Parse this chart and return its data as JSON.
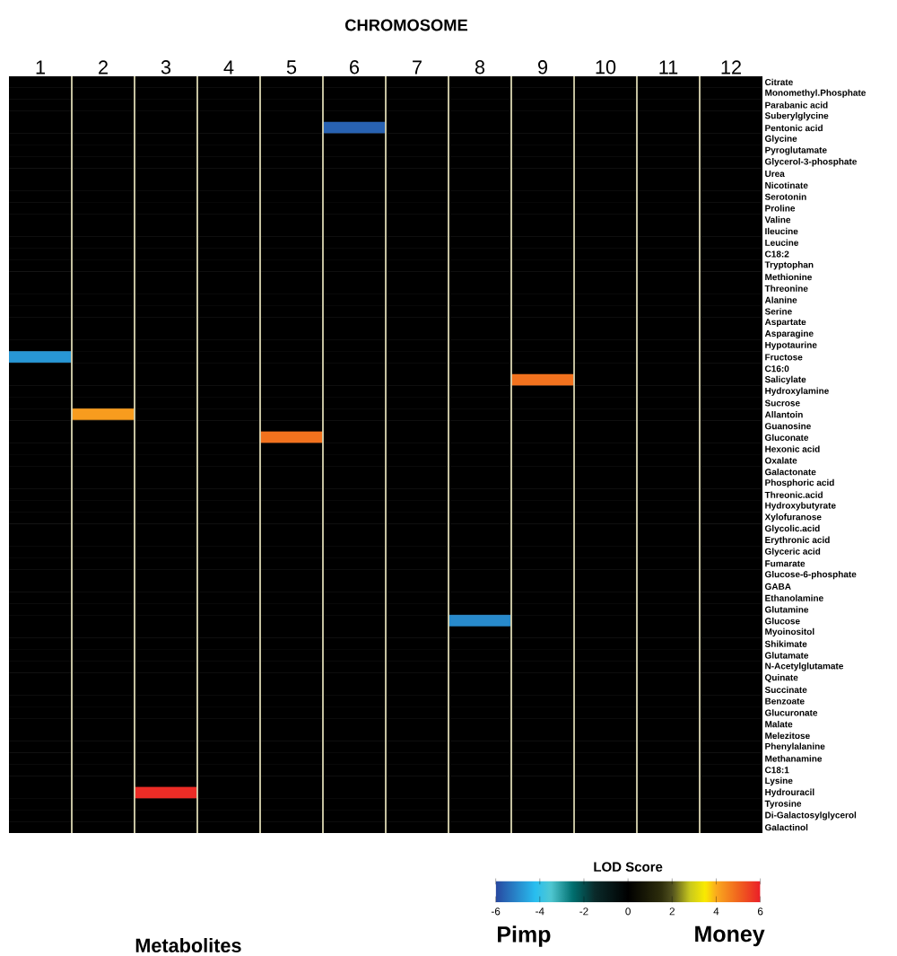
{
  "chart_data": {
    "type": "heatmap",
    "title": "CHROMOSOME",
    "clabel": "LOD Score",
    "annotations": [
      "Pimp",
      "Money",
      "Metabolites"
    ],
    "categories": [
      "1",
      "2",
      "3",
      "4",
      "5",
      "6",
      "7",
      "8",
      "9",
      "10",
      "11",
      "12"
    ],
    "y_categories": [
      "Citrate",
      "Monomethyl.Phosphate",
      "Parabanic acid",
      "Suberylglycine",
      "Pentonic acid",
      "Glycine",
      "Pyroglutamate",
      "Glycerol-3-phosphate",
      "Urea",
      "Nicotinate",
      "Serotonin",
      "Proline",
      "Valine",
      "Ileucine",
      "Leucine",
      "C18:2",
      "Tryptophan",
      "Methionine",
      "Threonine",
      "Alanine",
      "Serine",
      "Aspartate",
      "Asparagine",
      "Hypotaurine",
      "Fructose",
      "C16:0",
      "Salicylate",
      "Hydroxylamine",
      "Sucrose",
      "Allantoin",
      "Guanosine",
      "Gluconate",
      "Hexonic acid",
      "Oxalate",
      "Galactonate",
      "Phosphoric acid",
      "Threonic.acid",
      "Hydroxybutyrate",
      "Xylofuranose",
      "Glycolic.acid",
      "Erythronic acid",
      "Glyceric acid",
      "Fumarate",
      "Glucose-6-phosphate",
      "GABA",
      "Ethanolamine",
      "Glutamine",
      "Glucose",
      "Myoinositol",
      "Shikimate",
      "Glutamate",
      "N-Acetylglutamate",
      "Quinate",
      "Succinate",
      "Benzoate",
      "Glucuronate",
      "Malate",
      "Melezitose",
      "Phenylalanine",
      "Methanamine",
      "C18:1",
      "Lysine",
      "Hydrouracil",
      "Tyrosine",
      "Di-Galactosylglycerol",
      "Galactinol"
    ],
    "clim": [
      -6,
      6
    ],
    "cticks": [
      -6,
      -4,
      -2,
      0,
      2,
      4,
      6
    ],
    "cells": [
      [
        0,
        0,
        0,
        0,
        0,
        0,
        0,
        0,
        0,
        0,
        0,
        0
      ],
      [
        0,
        0,
        0,
        0,
        0,
        0,
        0,
        0,
        0,
        0,
        0,
        0
      ],
      [
        0,
        0,
        0,
        0,
        0,
        0,
        0,
        0,
        0,
        0,
        0,
        0
      ],
      [
        0,
        0,
        0,
        0,
        0,
        0,
        0,
        0,
        0,
        0,
        0,
        0
      ],
      [
        0,
        0,
        0,
        0,
        0,
        -5.6,
        0,
        0,
        0,
        0,
        0,
        0
      ],
      [
        0,
        0,
        0,
        0,
        0,
        0,
        0,
        0,
        0,
        0,
        0,
        0
      ],
      [
        0,
        0,
        0,
        0,
        0,
        0,
        0,
        0,
        0,
        0,
        0,
        0
      ],
      [
        0,
        0,
        0,
        0,
        0,
        0,
        0,
        0,
        0,
        0,
        0,
        0
      ],
      [
        0,
        0,
        0,
        0,
        0,
        0,
        0,
        0,
        0,
        0,
        0,
        0
      ],
      [
        0,
        0,
        0,
        0,
        0,
        0,
        0,
        0,
        0,
        0,
        0,
        0
      ],
      [
        0,
        0,
        0,
        0,
        0,
        0,
        0,
        0,
        0,
        0,
        0,
        0
      ],
      [
        0,
        0,
        0,
        0,
        0,
        0,
        0,
        0,
        0,
        0,
        0,
        0
      ],
      [
        0,
        0,
        0,
        0,
        0,
        0,
        0,
        0,
        0,
        0,
        0,
        0
      ],
      [
        0,
        0,
        0,
        0,
        0,
        0,
        0,
        0,
        0,
        0,
        0,
        0
      ],
      [
        0,
        0,
        0,
        0,
        0,
        0,
        0,
        0,
        0,
        0,
        0,
        0
      ],
      [
        0,
        0,
        0,
        0,
        0,
        0,
        0,
        0,
        0,
        0,
        0,
        0
      ],
      [
        0,
        0,
        0,
        0,
        0,
        0,
        0,
        0,
        0,
        0,
        0,
        0
      ],
      [
        0,
        0,
        0,
        0,
        0,
        0,
        0,
        0,
        0,
        0,
        0,
        0
      ],
      [
        0,
        0,
        0,
        0,
        0,
        0,
        0,
        0,
        0,
        0,
        0,
        0
      ],
      [
        0,
        0,
        0,
        0,
        0,
        0,
        0,
        0,
        0,
        0,
        0,
        0
      ],
      [
        0,
        0,
        0,
        0,
        0,
        0,
        0,
        0,
        0,
        0,
        0,
        0
      ],
      [
        0,
        0,
        0,
        0,
        0,
        0,
        0,
        0,
        0,
        0,
        0,
        0
      ],
      [
        0,
        0,
        0,
        0,
        0,
        0,
        0,
        0,
        0,
        0,
        0,
        0
      ],
      [
        0,
        0,
        0,
        0,
        0,
        0,
        0,
        0,
        0,
        0,
        0,
        0
      ],
      [
        -4.8,
        0,
        0,
        0,
        0,
        0,
        0,
        0,
        0,
        0,
        0,
        0
      ],
      [
        0,
        0,
        0,
        0,
        0,
        0,
        0,
        0,
        0,
        0,
        0,
        0
      ],
      [
        0,
        0,
        0,
        0,
        0,
        0,
        0,
        0,
        4.8,
        0,
        0,
        0
      ],
      [
        0,
        0,
        0,
        0,
        0,
        0,
        0,
        0,
        0,
        0,
        0,
        0
      ],
      [
        0,
        0,
        0,
        0,
        0,
        0,
        0,
        0,
        0,
        0,
        0,
        0
      ],
      [
        0,
        4.2,
        0,
        0,
        0,
        0,
        0,
        0,
        0,
        0,
        0,
        0
      ],
      [
        0,
        0,
        0,
        0,
        0,
        0,
        0,
        0,
        0,
        0,
        0,
        0
      ],
      [
        0,
        0,
        0,
        0,
        4.8,
        0,
        0,
        0,
        0,
        0,
        0,
        0
      ],
      [
        0,
        0,
        0,
        0,
        0,
        0,
        0,
        0,
        0,
        0,
        0,
        0
      ],
      [
        0,
        0,
        0,
        0,
        0,
        0,
        0,
        0,
        0,
        0,
        0,
        0
      ],
      [
        0,
        0,
        0,
        0,
        0,
        0,
        0,
        0,
        0,
        0,
        0,
        0
      ],
      [
        0,
        0,
        0,
        0,
        0,
        0,
        0,
        0,
        0,
        0,
        0,
        0
      ],
      [
        0,
        0,
        0,
        0,
        0,
        0,
        0,
        0,
        0,
        0,
        0,
        0
      ],
      [
        0,
        0,
        0,
        0,
        0,
        0,
        0,
        0,
        0,
        0,
        0,
        0
      ],
      [
        0,
        0,
        0,
        0,
        0,
        0,
        0,
        0,
        0,
        0,
        0,
        0
      ],
      [
        0,
        0,
        0,
        0,
        0,
        0,
        0,
        0,
        0,
        0,
        0,
        0
      ],
      [
        0,
        0,
        0,
        0,
        0,
        0,
        0,
        0,
        0,
        0,
        0,
        0
      ],
      [
        0,
        0,
        0,
        0,
        0,
        0,
        0,
        0,
        0,
        0,
        0,
        0
      ],
      [
        0,
        0,
        0,
        0,
        0,
        0,
        0,
        0,
        0,
        0,
        0,
        0
      ],
      [
        0,
        0,
        0,
        0,
        0,
        0,
        0,
        0,
        0,
        0,
        0,
        0
      ],
      [
        0,
        0,
        0,
        0,
        0,
        0,
        0,
        0,
        0,
        0,
        0,
        0
      ],
      [
        0,
        0,
        0,
        0,
        0,
        0,
        0,
        0,
        0,
        0,
        0,
        0
      ],
      [
        0,
        0,
        0,
        0,
        0,
        0,
        0,
        0,
        0,
        0,
        0,
        0
      ],
      [
        0,
        0,
        0,
        0,
        0,
        0,
        0,
        -5,
        0,
        0,
        0,
        0
      ],
      [
        0,
        0,
        0,
        0,
        0,
        0,
        0,
        0,
        0,
        0,
        0,
        0
      ],
      [
        0,
        0,
        0,
        0,
        0,
        0,
        0,
        0,
        0,
        0,
        0,
        0
      ],
      [
        0,
        0,
        0,
        0,
        0,
        0,
        0,
        0,
        0,
        0,
        0,
        0
      ],
      [
        0,
        0,
        0,
        0,
        0,
        0,
        0,
        0,
        0,
        0,
        0,
        0
      ],
      [
        0,
        0,
        0,
        0,
        0,
        0,
        0,
        0,
        0,
        0,
        0,
        0
      ],
      [
        0,
        0,
        0,
        0,
        0,
        0,
        0,
        0,
        0,
        0,
        0,
        0
      ],
      [
        0,
        0,
        0,
        0,
        0,
        0,
        0,
        0,
        0,
        0,
        0,
        0
      ],
      [
        0,
        0,
        0,
        0,
        0,
        0,
        0,
        0,
        0,
        0,
        0,
        0
      ],
      [
        0,
        0,
        0,
        0,
        0,
        0,
        0,
        0,
        0,
        0,
        0,
        0
      ],
      [
        0,
        0,
        0,
        0,
        0,
        0,
        0,
        0,
        0,
        0,
        0,
        0
      ],
      [
        0,
        0,
        0,
        0,
        0,
        0,
        0,
        0,
        0,
        0,
        0,
        0
      ],
      [
        0,
        0,
        0,
        0,
        0,
        0,
        0,
        0,
        0,
        0,
        0,
        0
      ],
      [
        0,
        0,
        0,
        0,
        0,
        0,
        0,
        0,
        0,
        0,
        0,
        0
      ],
      [
        0,
        0,
        0,
        0,
        0,
        0,
        0,
        0,
        0,
        0,
        0,
        0
      ],
      [
        0,
        0,
        5.8,
        0,
        0,
        0,
        0,
        0,
        0,
        0,
        0,
        0
      ],
      [
        0,
        0,
        0,
        0,
        0,
        0,
        0,
        0,
        0,
        0,
        0,
        0
      ],
      [
        0,
        0,
        0,
        0,
        0,
        0,
        0,
        0,
        0,
        0,
        0,
        0
      ],
      [
        0,
        0,
        0,
        0,
        0,
        0,
        0,
        0,
        0,
        0,
        0,
        0
      ]
    ]
  }
}
